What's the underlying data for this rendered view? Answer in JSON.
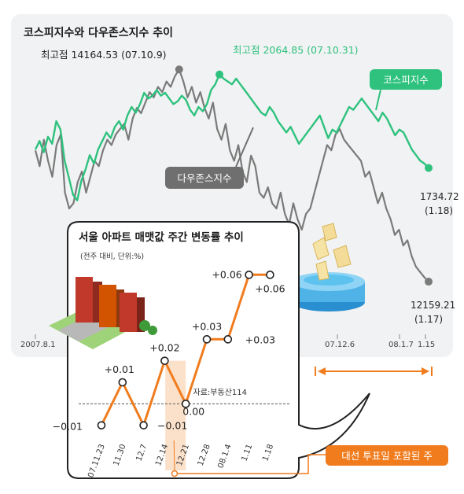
{
  "chart_data": [
    {
      "type": "line",
      "title": "코스피지수와 다우존스지수 추이",
      "x_tick_labels": [
        "2007.8.1",
        "07.12.6",
        "08.1.7",
        "1.15"
      ],
      "series": [
        {
          "name": "코스피지수",
          "color": "#2ec27e",
          "values": [
            1800,
            1830,
            1790,
            1845,
            1820,
            1900,
            1870,
            1760,
            1700,
            1640,
            1620,
            1690,
            1730,
            1780,
            1750,
            1800,
            1830,
            1860,
            1840,
            1880,
            1900,
            1870,
            1920,
            1950,
            1930,
            1960,
            2000,
            1980,
            1990,
            2010,
            1990,
            2000,
            1980,
            1960,
            1970,
            1990,
            1975,
            1940,
            1920,
            1950,
            1935,
            1960,
            2010,
            2030,
            2064.85,
            2050,
            2040,
            2030,
            2050,
            2030,
            2010,
            1990,
            1970,
            1950,
            1930,
            1920,
            1950,
            1930,
            1900,
            1880,
            1860,
            1880,
            1850,
            1820,
            1840,
            1860,
            1880,
            1900,
            1920,
            1880,
            1840,
            1870,
            1860,
            1890,
            1920,
            1950,
            1940,
            1960,
            1980,
            1960,
            1940,
            1920,
            1900,
            1930,
            1910,
            1880,
            1850,
            1870,
            1860,
            1830,
            1800,
            1780,
            1760,
            1750,
            1734.72
          ],
          "max_label": "최고점 2064.85 (07.10.31)",
          "end_label_value": "1734.72",
          "end_label_date": "(1.18)"
        },
        {
          "name": "다우존스지수",
          "color": "#7a7a7a",
          "values": [
            13400,
            13250,
            13500,
            13300,
            13150,
            13450,
            13550,
            13000,
            12850,
            12900,
            13100,
            13200,
            13000,
            13150,
            13300,
            13250,
            13400,
            13500,
            13450,
            13550,
            13600,
            13650,
            13500,
            13700,
            13800,
            13750,
            13850,
            13950,
            13900,
            14000,
            13950,
            14050,
            14000,
            14100,
            14164.53,
            14050,
            13900,
            14000,
            13850,
            13950,
            13800,
            13700,
            13850,
            13600,
            13500,
            13650,
            13400,
            13300,
            13450,
            13200,
            13100,
            13350,
            13250,
            13000,
            12950,
            13050,
            12900,
            12850,
            13000,
            12800,
            12700,
            12900,
            12750,
            12650,
            12800,
            12850,
            13000,
            13150,
            13300,
            13450,
            13400,
            13550,
            13600,
            13500,
            13450,
            13400,
            13350,
            13300,
            13150,
            13200,
            13050,
            12900,
            13000,
            12850,
            12750,
            12600,
            12650,
            12500,
            12550,
            12400,
            12300,
            12250,
            12200,
            12159.21
          ],
          "max_label": "최고점 14164.53 (07.10.9)",
          "end_label_value": "12159.21",
          "end_label_date": "(1.17)"
        }
      ],
      "range_arrow_note": "",
      "badge_kospi": "코스피지수",
      "badge_dow": "다우존스지수"
    },
    {
      "type": "line",
      "title": "서울 아파트 매맷값 주간 변동률 추이",
      "subtitle": "(전주 대비, 단위:%)",
      "source": "자료:부동산114",
      "x": [
        "07.11.23",
        "11.30",
        "12.7",
        "12.14",
        "12.21",
        "12.28",
        "08.1.4",
        "1.11",
        "1.18"
      ],
      "values": [
        -0.01,
        0.01,
        -0.01,
        0.02,
        0.0,
        0.03,
        0.03,
        0.06,
        0.06
      ],
      "value_labels": [
        "−0.01",
        "+0.01",
        "",
        "+0.02",
        "0.00",
        "+0.03",
        "+0.03",
        "+0.06",
        "+0.06"
      ],
      "extra_label_12_7": "−0.01",
      "highlight_category": "12.21",
      "highlight_note": "대선 투표일 포함된 주",
      "ylim": [
        -0.02,
        0.07
      ],
      "color": "#f07c1e"
    }
  ]
}
